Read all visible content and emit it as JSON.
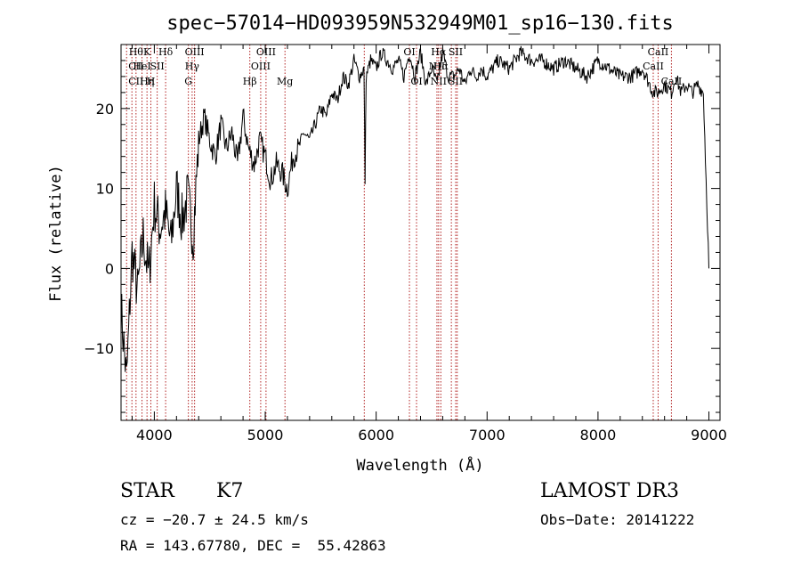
{
  "chart_data": {
    "type": "line",
    "title": "spec−57014−HD093959N532949M01_sp16−130.fits",
    "xlabel": "Wavelength (Å)",
    "ylabel": "Flux (relative)",
    "xlim": [
      3700,
      9100
    ],
    "ylim": [
      -19,
      28
    ],
    "xticks": [
      4000,
      5000,
      6000,
      7000,
      8000,
      9000
    ],
    "yticks": [
      -10,
      0,
      10,
      20
    ],
    "ytick_labels": [
      "−10",
      "0",
      "10",
      "20"
    ],
    "series": [
      {
        "name": "flux",
        "x": [
          3700,
          3750,
          3800,
          3850,
          3900,
          3950,
          4000,
          4050,
          4100,
          4150,
          4200,
          4250,
          4300,
          4350,
          4400,
          4450,
          4500,
          4550,
          4600,
          4650,
          4700,
          4750,
          4800,
          4850,
          4900,
          4950,
          5000,
          5050,
          5100,
          5150,
          5200,
          5250,
          5300,
          5350,
          5400,
          5450,
          5500,
          5550,
          5600,
          5650,
          5700,
          5750,
          5800,
          5850,
          5890,
          5900,
          5910,
          5950,
          6000,
          6050,
          6100,
          6150,
          6200,
          6250,
          6300,
          6350,
          6400,
          6450,
          6500,
          6550,
          6600,
          6650,
          6700,
          6750,
          6800,
          6850,
          6900,
          6950,
          7000,
          7100,
          7200,
          7300,
          7400,
          7500,
          7600,
          7700,
          7800,
          7900,
          8000,
          8100,
          8200,
          8300,
          8400,
          8498,
          8542,
          8600,
          8662,
          8700,
          8750,
          8800,
          8850,
          8900,
          8950,
          9000
        ],
        "y": [
          -5,
          -14,
          2,
          -3,
          4,
          -1,
          8,
          5,
          7,
          3,
          10,
          6,
          9,
          4,
          16,
          19,
          16,
          14,
          18,
          15,
          17,
          13,
          19,
          15,
          13,
          16,
          14,
          11,
          13,
          12,
          10,
          14,
          15,
          17,
          16,
          18,
          20,
          19,
          22,
          21,
          24,
          23,
          26,
          24,
          25,
          11,
          24,
          26,
          25,
          27,
          26,
          25,
          26,
          24,
          27,
          24,
          27,
          23,
          25,
          23,
          27,
          24,
          24,
          25,
          23,
          25,
          24,
          25,
          24,
          26,
          25,
          27,
          26,
          26,
          25,
          26,
          25,
          24,
          26,
          25,
          24,
          24,
          25,
          22,
          22,
          23,
          22,
          24,
          22,
          23,
          22,
          23,
          22,
          0
        ]
      }
    ],
    "lines": [
      {
        "wl": 3750,
        "labels": [
          "",
          "",
          ""
        ]
      },
      {
        "wl": 3798,
        "labels": [
          "",
          "",
          ""
        ]
      },
      {
        "wl": 3835,
        "labels": [
          "Hθ",
          "CII",
          "CII"
        ]
      },
      {
        "wl": 3889,
        "labels": [
          "",
          "HeI",
          ""
        ]
      },
      {
        "wl": 3934,
        "labels": [
          "K",
          "",
          "Hη"
        ]
      },
      {
        "wl": 3969,
        "labels": [
          "",
          "",
          "H"
        ]
      },
      {
        "wl": 4026,
        "labels": [
          "",
          "SII",
          ""
        ]
      },
      {
        "wl": 4102,
        "labels": [
          "Hδ",
          "",
          ""
        ]
      },
      {
        "wl": 4307,
        "labels": [
          "",
          "",
          "G"
        ]
      },
      {
        "wl": 4341,
        "labels": [
          "",
          "Hγ",
          ""
        ]
      },
      {
        "wl": 4363,
        "labels": [
          "OIII",
          "",
          ""
        ]
      },
      {
        "wl": 4861,
        "labels": [
          "",
          "",
          "Hβ"
        ]
      },
      {
        "wl": 4959,
        "labels": [
          "",
          "OIII",
          ""
        ]
      },
      {
        "wl": 5007,
        "labels": [
          "OIII",
          "",
          ""
        ]
      },
      {
        "wl": 5178,
        "labels": [
          "",
          "",
          "Mg"
        ]
      },
      {
        "wl": 5893,
        "labels": [
          "",
          "",
          ""
        ]
      },
      {
        "wl": 6300,
        "labels": [
          "OI",
          "",
          ""
        ]
      },
      {
        "wl": 6364,
        "labels": [
          "",
          "",
          "OI"
        ]
      },
      {
        "wl": 6548,
        "labels": [
          "",
          "NII",
          ""
        ]
      },
      {
        "wl": 6563,
        "labels": [
          "Hα",
          "",
          "NII"
        ]
      },
      {
        "wl": 6583,
        "labels": [
          "",
          "Hα",
          ""
        ]
      },
      {
        "wl": 6678,
        "labels": [
          "",
          "",
          ""
        ]
      },
      {
        "wl": 6717,
        "labels": [
          "SII",
          "",
          "SII"
        ]
      },
      {
        "wl": 6731,
        "labels": [
          "",
          "",
          ""
        ]
      },
      {
        "wl": 8498,
        "labels": [
          "",
          "CaII",
          ""
        ]
      },
      {
        "wl": 8542,
        "labels": [
          "CaII",
          "",
          ""
        ]
      },
      {
        "wl": 8662,
        "labels": [
          "",
          "",
          "CaII"
        ]
      }
    ]
  },
  "info": {
    "class": "STAR",
    "subclass": "K7",
    "survey": "LAMOST DR3",
    "cz": "cz = −20.7 ± 24.5 km/s",
    "obs_date": "Obs−Date: 20141222",
    "coords": "RA = 143.67780, DEC =  55.42863"
  },
  "colors": {
    "spectrum": "#000000",
    "line_marker": "#b22222"
  }
}
